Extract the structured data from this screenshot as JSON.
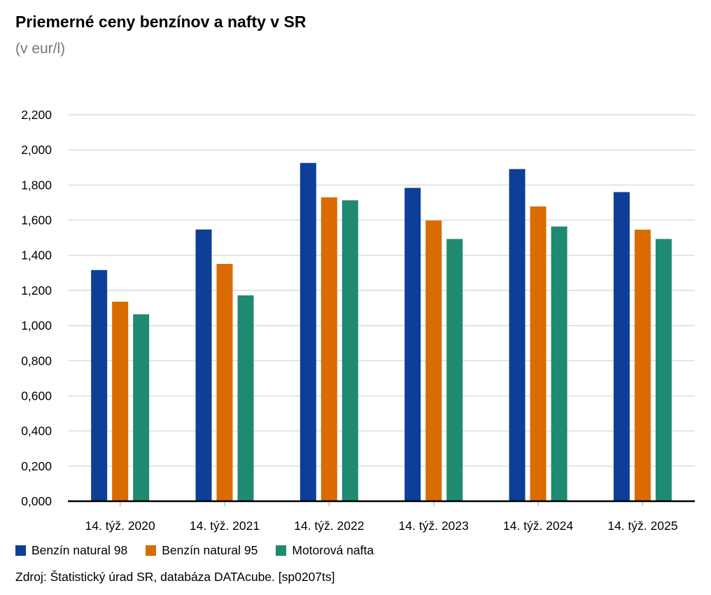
{
  "title": "Priemerné ceny benzínov a nafty v SR",
  "subtitle": "(v eur/l)",
  "source": "Zdroj: Štatistický úrad SR, databáza DATAcube. [sp0207ts]",
  "chart_data": {
    "type": "bar",
    "title": "Priemerné ceny benzínov a nafty v SR",
    "subtitle": "(v eur/l)",
    "categories": [
      "14. týž. 2020",
      "14. týž. 2021",
      "14. týž. 2022",
      "14. týž. 2023",
      "14. týž. 2024",
      "14. týž. 2025"
    ],
    "series": [
      {
        "name": "Benzín natural 98",
        "color": "#0d3f99",
        "values": [
          1.316,
          1.547,
          1.926,
          1.784,
          1.891,
          1.76
        ]
      },
      {
        "name": "Benzín natural 95",
        "color": "#d96b00",
        "values": [
          1.136,
          1.351,
          1.73,
          1.598,
          1.678,
          1.546
        ]
      },
      {
        "name": "Motorová nafta",
        "color": "#1e8a72",
        "values": [
          1.064,
          1.172,
          1.713,
          1.493,
          1.564,
          1.493
        ]
      }
    ],
    "yticks": [
      "0,000",
      "0,200",
      "0,400",
      "0,600",
      "0,800",
      "1,000",
      "1,200",
      "1,400",
      "1,600",
      "1,800",
      "2,000",
      "2,200"
    ],
    "ylim": [
      0,
      2.2
    ],
    "grid": true,
    "legend_position": "bottom-left"
  }
}
